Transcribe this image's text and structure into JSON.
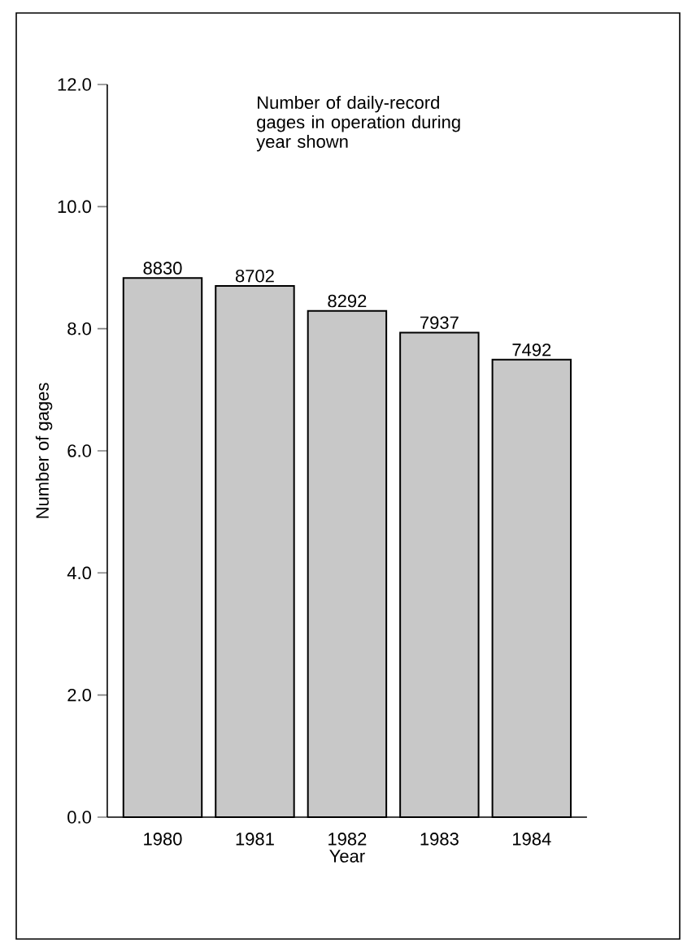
{
  "chart_data": {
    "type": "bar",
    "ylabel": "Number of gages",
    "xlabel": "Year",
    "annotations": [
      "Number of daily-record gages in operation during year shown",
      {
        "text": "8830",
        "x": "1980",
        "y": 8.83
      },
      {
        "text": "8702",
        "x": "1981",
        "y": 8.702
      },
      {
        "text": "8292",
        "x": "1982",
        "y": 8.292
      },
      {
        "text": "7937",
        "x": "1983",
        "y": 7.937
      },
      {
        "text": "7492",
        "x": "1984",
        "y": 7.492
      }
    ],
    "categories": [
      "1980",
      "1981",
      "1982",
      "1983",
      "1984"
    ],
    "values": [
      8.83,
      8.702,
      8.292,
      7.937,
      7.492
    ],
    "color": "#c8c8c8",
    "ylim": [
      0,
      12
    ],
    "yticks": [
      {
        "value": 0,
        "label": "0.0"
      },
      {
        "value": 2,
        "label": "2.0"
      },
      {
        "value": 4,
        "label": "4.0"
      },
      {
        "value": 6,
        "label": "6.0"
      },
      {
        "value": 8,
        "label": "8.0"
      },
      {
        "value": 10,
        "label": "10.0"
      },
      {
        "value": 12,
        "label": "12.0"
      }
    ],
    "grid": false
  }
}
